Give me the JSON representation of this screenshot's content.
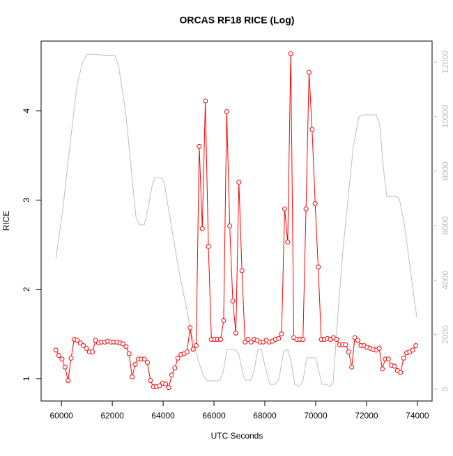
{
  "chart_data": {
    "type": "line",
    "title": "ORCAS RF18 RICE (Log)",
    "xlabel": "UTC Seconds",
    "ylabel": "RICE",
    "xlim": [
      59200,
      74580
    ],
    "xticks": [
      60000,
      62000,
      64000,
      66000,
      68000,
      70000,
      72000,
      74000
    ],
    "ylim": [
      0.75,
      4.78
    ],
    "yticks": [
      1,
      2,
      3,
      4
    ],
    "y2lim": [
      -434,
      12766
    ],
    "y2ticks": [
      0,
      2000,
      4000,
      6000,
      8000,
      10000,
      12000
    ],
    "y2color": "#bebebe",
    "series": [
      {
        "color": "#ff0000",
        "markers": true,
        "x": [
          59780,
          59900,
          60020,
          60140,
          60260,
          60380,
          60500,
          60620,
          60740,
          60860,
          60980,
          61100,
          61220,
          61340,
          61460,
          61580,
          61700,
          61820,
          61940,
          62060,
          62180,
          62300,
          62420,
          62540,
          62660,
          62780,
          62900,
          63020,
          63140,
          63260,
          63380,
          63500,
          63620,
          63740,
          63860,
          63980,
          64100,
          64220,
          64340,
          64460,
          64580,
          64700,
          64820,
          64940,
          65060,
          65180,
          65300,
          65420,
          65540,
          65660,
          65780,
          65900,
          66020,
          66140,
          66260,
          66380,
          66500,
          66620,
          66740,
          66860,
          66980,
          67100,
          67220,
          67340,
          67460,
          67580,
          67700,
          67820,
          67940,
          68060,
          68180,
          68300,
          68420,
          68540,
          68660,
          68780,
          68900,
          69020,
          69140,
          69260,
          69380,
          69500,
          69620,
          69740,
          69860,
          69980,
          70100,
          70220,
          70340,
          70460,
          70580,
          70700,
          70820,
          70940,
          71060,
          71180,
          71300,
          71420,
          71540,
          71660,
          71780,
          71900,
          72020,
          72140,
          72260,
          72380,
          72500,
          72620,
          72740,
          72860,
          72980,
          73100,
          73220,
          73340,
          73460,
          73580,
          73700,
          73820,
          73940
        ],
        "values": [
          1.32,
          1.26,
          1.22,
          1.13,
          0.98,
          1.23,
          1.44,
          1.43,
          1.4,
          1.37,
          1.34,
          1.3,
          1.3,
          1.43,
          1.4,
          1.41,
          1.41,
          1.42,
          1.41,
          1.41,
          1.41,
          1.4,
          1.39,
          1.36,
          1.28,
          1.02,
          1.16,
          1.22,
          1.22,
          1.22,
          1.18,
          0.98,
          0.91,
          0.91,
          0.92,
          0.95,
          0.94,
          0.9,
          1.04,
          1.12,
          1.23,
          1.27,
          1.28,
          1.3,
          1.57,
          1.33,
          1.37,
          3.6,
          2.68,
          4.11,
          2.48,
          1.44,
          1.44,
          1.44,
          1.44,
          1.65,
          3.99,
          2.71,
          1.87,
          1.51,
          3.2,
          2.21,
          1.41,
          1.44,
          1.41,
          1.44,
          1.43,
          1.41,
          1.41,
          1.43,
          1.41,
          1.42,
          1.44,
          1.45,
          1.5,
          2.9,
          2.53,
          4.64,
          1.46,
          1.44,
          1.44,
          1.44,
          2.9,
          4.43,
          3.79,
          2.96,
          2.25,
          1.44,
          1.44,
          1.45,
          1.44,
          1.46,
          1.44,
          1.38,
          1.38,
          1.38,
          1.3,
          1.13,
          1.46,
          1.43,
          1.37,
          1.37,
          1.35,
          1.34,
          1.33,
          1.32,
          1.34,
          1.11,
          1.22,
          1.22,
          1.15,
          1.14,
          1.09,
          1.07,
          1.23,
          1.29,
          1.3,
          1.32,
          1.37
        ]
      },
      {
        "color": "#bebebe",
        "axis": "y2",
        "markers": false,
        "x": [
          59781,
          60055,
          60329,
          60603,
          60822,
          61014,
          62110,
          62247,
          62521,
          62658,
          62932,
          63069,
          63261,
          63398,
          63562,
          63672,
          63973,
          64055,
          64302,
          64576,
          64850,
          65124,
          65397,
          65590,
          65727,
          66220,
          66357,
          66521,
          66850,
          66987,
          67124,
          67234,
          67453,
          67562,
          67727,
          67864,
          68001,
          68193,
          68412,
          68549,
          68741,
          68905,
          69042,
          69179,
          69371,
          69508,
          69645,
          70001,
          70138,
          70248,
          70412,
          70549,
          70686,
          70878,
          71070,
          71289,
          71481,
          71700,
          71837,
          72385,
          72522,
          72659,
          72796,
          73152,
          73289,
          73481,
          73755,
          73974
        ],
        "values": [
          4774,
          6612,
          8910,
          11080,
          11974,
          12280,
          12229,
          11846,
          10186,
          8910,
          6305,
          6025,
          6025,
          6612,
          7429,
          7761,
          7736,
          7506,
          6102,
          4570,
          3293,
          2017,
          996,
          485,
          306,
          306,
          613,
          1455,
          1455,
          1251,
          613,
          332,
          332,
          613,
          1455,
          1455,
          868,
          179,
          179,
          357,
          1379,
          1455,
          945,
          179,
          102,
          332,
          1149,
          1149,
          613,
          179,
          179,
          102,
          230,
          2783,
          5080,
          7123,
          8910,
          9982,
          10059,
          10059,
          9676,
          8144,
          7072,
          7072,
          6995,
          6102,
          4187,
          2655
        ]
      }
    ]
  }
}
